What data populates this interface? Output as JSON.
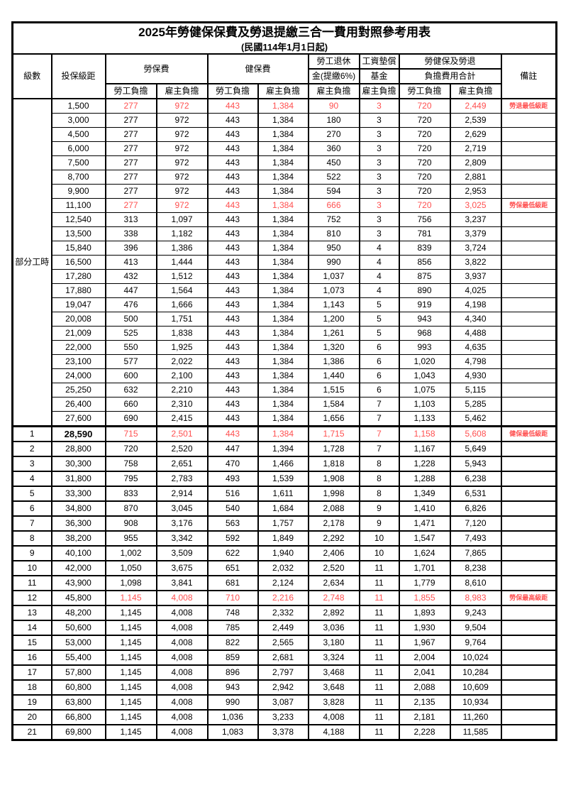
{
  "title": "2025年勞健保保費及勞退提繳三合一費用對照參考用表",
  "subtitle": "(民國114年1月1日起)",
  "colors": {
    "employee_bg": "#F6C68C",
    "employer_bg": "#E0DFF0",
    "highlight_red": "#FF5050"
  },
  "header": {
    "level": "級數",
    "bracket": "投保級距",
    "labor_fee": "勞保費",
    "health_fee": "健保費",
    "pension_line1": "勞工退休",
    "pension_line2": "金(提繳6%)",
    "wage_fund_line1": "工資墊償",
    "wage_fund_line2": "基金",
    "total_line1": "勞健保及勞退",
    "total_line2": "負擔費用合計",
    "remark": "備註",
    "employee_share": "勞工負擔",
    "employer_share": "雇主負擔"
  },
  "part_time_label": "部分工時",
  "rows": [
    {
      "sec": "part",
      "level": "",
      "bracket": "1,500",
      "v": [
        "277",
        "972",
        "443",
        "1,384",
        "90",
        "3",
        "720",
        "2,449"
      ],
      "remark": "勞退最低級距",
      "red": true
    },
    {
      "sec": "part",
      "level": "",
      "bracket": "3,000",
      "v": [
        "277",
        "972",
        "443",
        "1,384",
        "180",
        "3",
        "720",
        "2,539"
      ],
      "remark": "",
      "red": false
    },
    {
      "sec": "part",
      "level": "",
      "bracket": "4,500",
      "v": [
        "277",
        "972",
        "443",
        "1,384",
        "270",
        "3",
        "720",
        "2,629"
      ],
      "remark": "",
      "red": false
    },
    {
      "sec": "part",
      "level": "",
      "bracket": "6,000",
      "v": [
        "277",
        "972",
        "443",
        "1,384",
        "360",
        "3",
        "720",
        "2,719"
      ],
      "remark": "",
      "red": false
    },
    {
      "sec": "part",
      "level": "",
      "bracket": "7,500",
      "v": [
        "277",
        "972",
        "443",
        "1,384",
        "450",
        "3",
        "720",
        "2,809"
      ],
      "remark": "",
      "red": false
    },
    {
      "sec": "part",
      "level": "",
      "bracket": "8,700",
      "v": [
        "277",
        "972",
        "443",
        "1,384",
        "522",
        "3",
        "720",
        "2,881"
      ],
      "remark": "",
      "red": false
    },
    {
      "sec": "part",
      "level": "",
      "bracket": "9,900",
      "v": [
        "277",
        "972",
        "443",
        "1,384",
        "594",
        "3",
        "720",
        "2,953"
      ],
      "remark": "",
      "red": false
    },
    {
      "sec": "part",
      "level": "",
      "bracket": "11,100",
      "v": [
        "277",
        "972",
        "443",
        "1,384",
        "666",
        "3",
        "720",
        "3,025"
      ],
      "remark": "勞保最低級距",
      "red": true
    },
    {
      "sec": "part",
      "level": "",
      "bracket": "12,540",
      "v": [
        "313",
        "1,097",
        "443",
        "1,384",
        "752",
        "3",
        "756",
        "3,237"
      ],
      "remark": "",
      "red": false
    },
    {
      "sec": "part",
      "level": "",
      "bracket": "13,500",
      "v": [
        "338",
        "1,182",
        "443",
        "1,384",
        "810",
        "3",
        "781",
        "3,379"
      ],
      "remark": "",
      "red": false
    },
    {
      "sec": "part",
      "level": "",
      "bracket": "15,840",
      "v": [
        "396",
        "1,386",
        "443",
        "1,384",
        "950",
        "4",
        "839",
        "3,724"
      ],
      "remark": "",
      "red": false
    },
    {
      "sec": "part",
      "level": "",
      "bracket": "16,500",
      "v": [
        "413",
        "1,444",
        "443",
        "1,384",
        "990",
        "4",
        "856",
        "3,822"
      ],
      "remark": "",
      "red": false
    },
    {
      "sec": "part",
      "level": "",
      "bracket": "17,280",
      "v": [
        "432",
        "1,512",
        "443",
        "1,384",
        "1,037",
        "4",
        "875",
        "3,937"
      ],
      "remark": "",
      "red": false
    },
    {
      "sec": "part",
      "level": "",
      "bracket": "17,880",
      "v": [
        "447",
        "1,564",
        "443",
        "1,384",
        "1,073",
        "4",
        "890",
        "4,025"
      ],
      "remark": "",
      "red": false
    },
    {
      "sec": "part",
      "level": "",
      "bracket": "19,047",
      "v": [
        "476",
        "1,666",
        "443",
        "1,384",
        "1,143",
        "5",
        "919",
        "4,198"
      ],
      "remark": "",
      "red": false
    },
    {
      "sec": "part",
      "level": "",
      "bracket": "20,008",
      "v": [
        "500",
        "1,751",
        "443",
        "1,384",
        "1,200",
        "5",
        "943",
        "4,340"
      ],
      "remark": "",
      "red": false
    },
    {
      "sec": "part",
      "level": "",
      "bracket": "21,009",
      "v": [
        "525",
        "1,838",
        "443",
        "1,384",
        "1,261",
        "5",
        "968",
        "4,488"
      ],
      "remark": "",
      "red": false
    },
    {
      "sec": "part",
      "level": "",
      "bracket": "22,000",
      "v": [
        "550",
        "1,925",
        "443",
        "1,384",
        "1,320",
        "6",
        "993",
        "4,635"
      ],
      "remark": "",
      "red": false
    },
    {
      "sec": "part",
      "level": "",
      "bracket": "23,100",
      "v": [
        "577",
        "2,022",
        "443",
        "1,384",
        "1,386",
        "6",
        "1,020",
        "4,798"
      ],
      "remark": "",
      "red": false
    },
    {
      "sec": "part",
      "level": "",
      "bracket": "24,000",
      "v": [
        "600",
        "2,100",
        "443",
        "1,384",
        "1,440",
        "6",
        "1,043",
        "4,930"
      ],
      "remark": "",
      "red": false
    },
    {
      "sec": "part",
      "level": "",
      "bracket": "25,250",
      "v": [
        "632",
        "2,210",
        "443",
        "1,384",
        "1,515",
        "6",
        "1,075",
        "5,115"
      ],
      "remark": "",
      "red": false
    },
    {
      "sec": "part",
      "level": "",
      "bracket": "26,400",
      "v": [
        "660",
        "2,310",
        "443",
        "1,384",
        "1,584",
        "7",
        "1,103",
        "5,285"
      ],
      "remark": "",
      "red": false
    },
    {
      "sec": "part",
      "level": "",
      "bracket": "27,600",
      "v": [
        "690",
        "2,415",
        "443",
        "1,384",
        "1,656",
        "7",
        "1,133",
        "5,462"
      ],
      "remark": "",
      "red": false
    },
    {
      "sec": "num",
      "level": "1",
      "bracket": "28,590",
      "bold_bracket": true,
      "v": [
        "715",
        "2,501",
        "443",
        "1,384",
        "1,715",
        "7",
        "1,158",
        "5,608"
      ],
      "remark": "健保最低級距",
      "red": true
    },
    {
      "sec": "num",
      "level": "2",
      "bracket": "28,800",
      "v": [
        "720",
        "2,520",
        "447",
        "1,394",
        "1,728",
        "7",
        "1,167",
        "5,649"
      ],
      "remark": "",
      "red": false
    },
    {
      "sec": "num",
      "level": "3",
      "bracket": "30,300",
      "v": [
        "758",
        "2,651",
        "470",
        "1,466",
        "1,818",
        "8",
        "1,228",
        "5,943"
      ],
      "remark": "",
      "red": false
    },
    {
      "sec": "num",
      "level": "4",
      "bracket": "31,800",
      "v": [
        "795",
        "2,783",
        "493",
        "1,539",
        "1,908",
        "8",
        "1,288",
        "6,238"
      ],
      "remark": "",
      "red": false
    },
    {
      "sec": "num",
      "level": "5",
      "bracket": "33,300",
      "v": [
        "833",
        "2,914",
        "516",
        "1,611",
        "1,998",
        "8",
        "1,349",
        "6,531"
      ],
      "remark": "",
      "red": false
    },
    {
      "sec": "num",
      "level": "6",
      "bracket": "34,800",
      "v": [
        "870",
        "3,045",
        "540",
        "1,684",
        "2,088",
        "9",
        "1,410",
        "6,826"
      ],
      "remark": "",
      "red": false
    },
    {
      "sec": "num",
      "level": "7",
      "bracket": "36,300",
      "v": [
        "908",
        "3,176",
        "563",
        "1,757",
        "2,178",
        "9",
        "1,471",
        "7,120"
      ],
      "remark": "",
      "red": false
    },
    {
      "sec": "num",
      "level": "8",
      "bracket": "38,200",
      "v": [
        "955",
        "3,342",
        "592",
        "1,849",
        "2,292",
        "10",
        "1,547",
        "7,493"
      ],
      "remark": "",
      "red": false
    },
    {
      "sec": "num",
      "level": "9",
      "bracket": "40,100",
      "v": [
        "1,002",
        "3,509",
        "622",
        "1,940",
        "2,406",
        "10",
        "1,624",
        "7,865"
      ],
      "remark": "",
      "red": false
    },
    {
      "sec": "num",
      "level": "10",
      "bracket": "42,000",
      "v": [
        "1,050",
        "3,675",
        "651",
        "2,032",
        "2,520",
        "11",
        "1,701",
        "8,238"
      ],
      "remark": "",
      "red": false
    },
    {
      "sec": "num",
      "level": "11",
      "bracket": "43,900",
      "v": [
        "1,098",
        "3,841",
        "681",
        "2,124",
        "2,634",
        "11",
        "1,779",
        "8,610"
      ],
      "remark": "",
      "red": false
    },
    {
      "sec": "num",
      "level": "12",
      "bracket": "45,800",
      "v": [
        "1,145",
        "4,008",
        "710",
        "2,216",
        "2,748",
        "11",
        "1,855",
        "8,983"
      ],
      "remark": "勞保最高級距",
      "red": true
    },
    {
      "sec": "num",
      "level": "13",
      "bracket": "48,200",
      "v": [
        "1,145",
        "4,008",
        "748",
        "2,332",
        "2,892",
        "11",
        "1,893",
        "9,243"
      ],
      "remark": "",
      "red": false
    },
    {
      "sec": "num",
      "level": "14",
      "bracket": "50,600",
      "v": [
        "1,145",
        "4,008",
        "785",
        "2,449",
        "3,036",
        "11",
        "1,930",
        "9,504"
      ],
      "remark": "",
      "red": false
    },
    {
      "sec": "num",
      "level": "15",
      "bracket": "53,000",
      "v": [
        "1,145",
        "4,008",
        "822",
        "2,565",
        "3,180",
        "11",
        "1,967",
        "9,764"
      ],
      "remark": "",
      "red": false
    },
    {
      "sec": "num",
      "level": "16",
      "bracket": "55,400",
      "v": [
        "1,145",
        "4,008",
        "859",
        "2,681",
        "3,324",
        "11",
        "2,004",
        "10,024"
      ],
      "remark": "",
      "red": false
    },
    {
      "sec": "num",
      "level": "17",
      "bracket": "57,800",
      "v": [
        "1,145",
        "4,008",
        "896",
        "2,797",
        "3,468",
        "11",
        "2,041",
        "10,284"
      ],
      "remark": "",
      "red": false
    },
    {
      "sec": "num",
      "level": "18",
      "bracket": "60,800",
      "v": [
        "1,145",
        "4,008",
        "943",
        "2,942",
        "3,648",
        "11",
        "2,088",
        "10,609"
      ],
      "remark": "",
      "red": false
    },
    {
      "sec": "num",
      "level": "19",
      "bracket": "63,800",
      "v": [
        "1,145",
        "4,008",
        "990",
        "3,087",
        "3,828",
        "11",
        "2,135",
        "10,934"
      ],
      "remark": "",
      "red": false
    },
    {
      "sec": "num",
      "level": "20",
      "bracket": "66,800",
      "v": [
        "1,145",
        "4,008",
        "1,036",
        "3,233",
        "4,008",
        "11",
        "2,181",
        "11,260"
      ],
      "remark": "",
      "red": false
    },
    {
      "sec": "num",
      "level": "21",
      "bracket": "69,800",
      "v": [
        "1,145",
        "4,008",
        "1,083",
        "3,378",
        "4,188",
        "11",
        "2,228",
        "11,585"
      ],
      "remark": "",
      "red": false
    }
  ]
}
